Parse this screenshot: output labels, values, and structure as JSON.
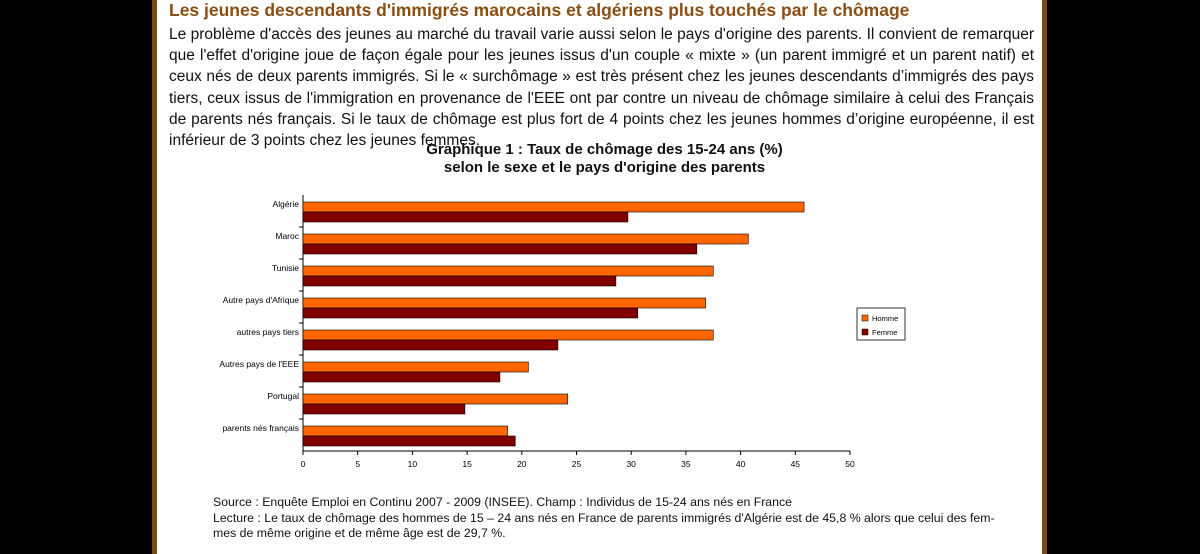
{
  "article": {
    "heading": "Les jeunes descendants d'immigrés marocains et algériens plus touchés par le chômage",
    "body": "Le problème d'accès des jeunes au marché du travail varie aussi selon le pays d'origine des parents. Il convient de remarquer que l'effet d'origine joue de façon égale pour les jeunes issus d'un couple « mixte » (un parent immigré et un parent natif) et ceux nés de deux parents immigrés. Si le « surchômage » est très présent chez les jeunes descendants d’immigrés des pays tiers, ceux issus de l'immigration en provenance de l'EEE ont par contre un niveau de chômage similaire à celui des Français de parents nés français. Si le taux de chômage est plus fort de 4 points chez les jeunes hommes d’origine européenne, il est inférieur de 3 points chez les jeunes femmes."
  },
  "chart_data": {
    "type": "bar",
    "orientation": "horizontal",
    "title_line1": "Graphique 1 : Taux de chômage des 15-24 ans (%)",
    "title_line2": "selon le sexe et le pays d'origine des parents",
    "categories": [
      "Algérie",
      "Maroc",
      "Tunisie",
      "Autre pays d'Afrique",
      "autres pays tiers",
      "Autres pays de l'EEE",
      "Portugal",
      "parents nés français"
    ],
    "series": [
      {
        "name": "Homme",
        "color": "#ff6600",
        "values": [
          45.8,
          40.7,
          37.5,
          36.8,
          37.5,
          20.6,
          24.2,
          18.7
        ]
      },
      {
        "name": "Femme",
        "color": "#800000",
        "values": [
          29.7,
          36.0,
          28.6,
          30.6,
          23.3,
          18.0,
          14.8,
          19.4
        ]
      }
    ],
    "xlim": [
      0,
      50
    ],
    "xticks": [
      "0",
      "5",
      "10",
      "15",
      "20",
      "25",
      "30",
      "35",
      "40",
      "45",
      "50"
    ],
    "legend_position": "right",
    "grid": false
  },
  "notes": {
    "source": "Source : Enquête Emploi en Continu 2007 - 2009 (INSEE). Champ : Individus de 15-24 ans nés en France",
    "lecture_line1": "Lecture : Le taux de chômage des hommes de 15 – 24 ans nés en France de parents immigrés d'Algérie est de 45,8 % alors que celui des fem-",
    "lecture_line2": "mes de même origine et de même âge est de 29,7 %."
  }
}
